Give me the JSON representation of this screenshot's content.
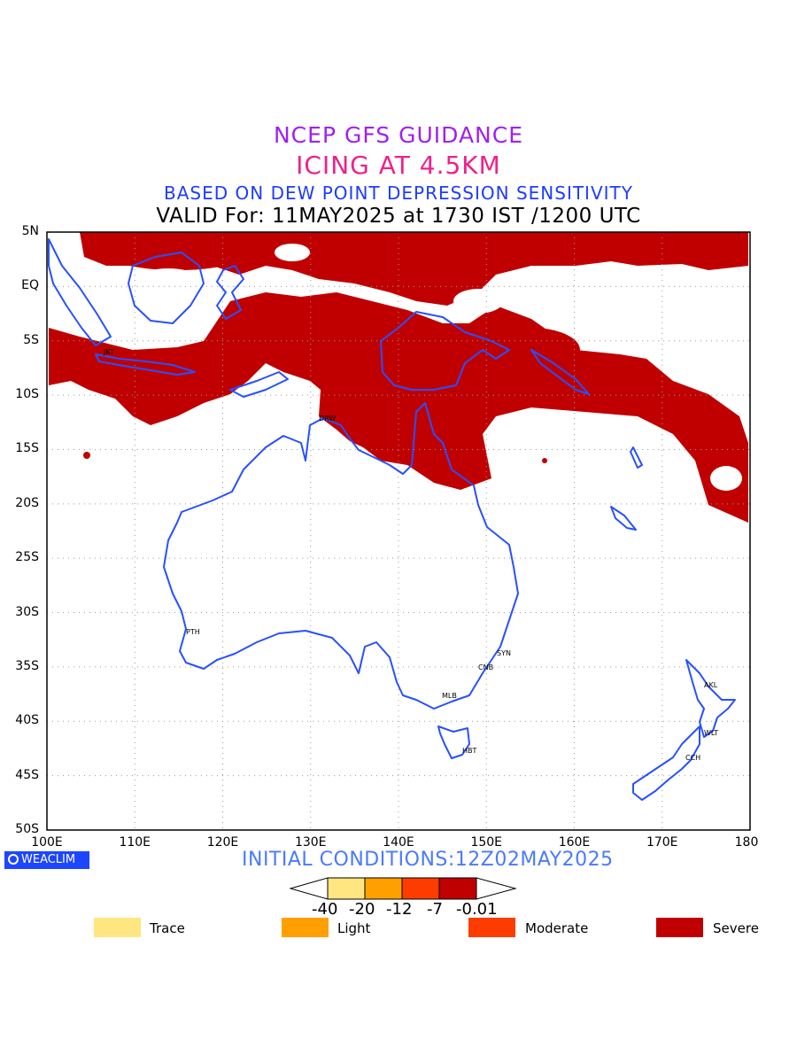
{
  "title": {
    "line1": "NCEP GFS GUIDANCE",
    "line2": "ICING AT 4.5KM",
    "line3": "BASED ON DEW POINT DEPRESSION SENSITIVITY",
    "line4": "VALID For: 11MAY2025 at 1730 IST /1200 UTC"
  },
  "lat_labels": [
    "5N",
    "EQ",
    "5S",
    "10S",
    "15S",
    "20S",
    "25S",
    "30S",
    "35S",
    "40S",
    "45S",
    "50S"
  ],
  "lon_labels": [
    "100E",
    "110E",
    "120E",
    "130E",
    "140E",
    "150E",
    "160E",
    "170E",
    "180"
  ],
  "cities": [
    "JKT",
    "DRW",
    "PTH",
    "SYN",
    "CNB",
    "MLB",
    "HBT",
    "AKL",
    "WLT",
    "CCH"
  ],
  "logo": "WEACLIM",
  "initial_conditions": "INITIAL CONDITIONS:12Z02MAY2025",
  "colorbar": {
    "ticks": [
      "-40",
      "-20",
      "-12",
      "-7",
      "-0.01"
    ],
    "colors": [
      "#ffe680",
      "#ffa000",
      "#ff3c00",
      "#c00000"
    ]
  },
  "legend": [
    {
      "label": "Trace",
      "color": "#ffe680"
    },
    {
      "label": "Light",
      "color": "#ffa000"
    },
    {
      "label": "Moderate",
      "color": "#ff3c00"
    },
    {
      "label": "Severe",
      "color": "#c00000"
    }
  ],
  "colors": {
    "coastline": "#2850ff",
    "severe": "#c00000",
    "grid": "#9a9a9a"
  }
}
